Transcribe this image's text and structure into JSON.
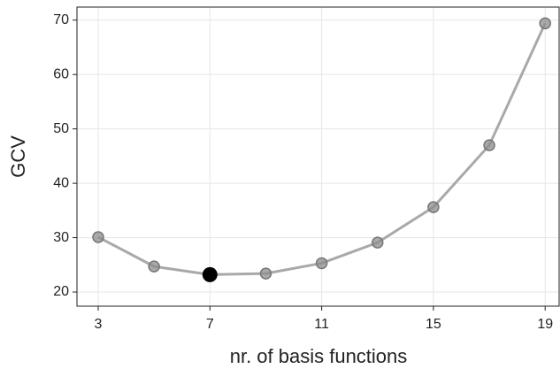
{
  "chart_data": {
    "type": "line",
    "x_label": "nr. of basis functions",
    "y_label": "GCV",
    "x": [
      3,
      5,
      7,
      9,
      11,
      13,
      15,
      17,
      19
    ],
    "series": [
      {
        "color": "#a9a9a9",
        "values": [
          30.1,
          24.7,
          23.2,
          23.4,
          25.3,
          29.1,
          35.6,
          47.0,
          69.4
        ]
      }
    ],
    "point_colors": [
      "#8c8c8c",
      "#8c8c8c",
      "#000000",
      "#8c8c8c",
      "#8c8c8c",
      "#8c8c8c",
      "#8c8c8c",
      "#8c8c8c",
      "#8c8c8c"
    ],
    "xlim": [
      2.24,
      19.5
    ],
    "ylim": [
      17.4,
      72.4
    ],
    "xticks": [
      3,
      7,
      11,
      15,
      19
    ],
    "yticks": [
      20,
      30,
      40,
      50,
      60,
      70
    ],
    "grid": true
  }
}
